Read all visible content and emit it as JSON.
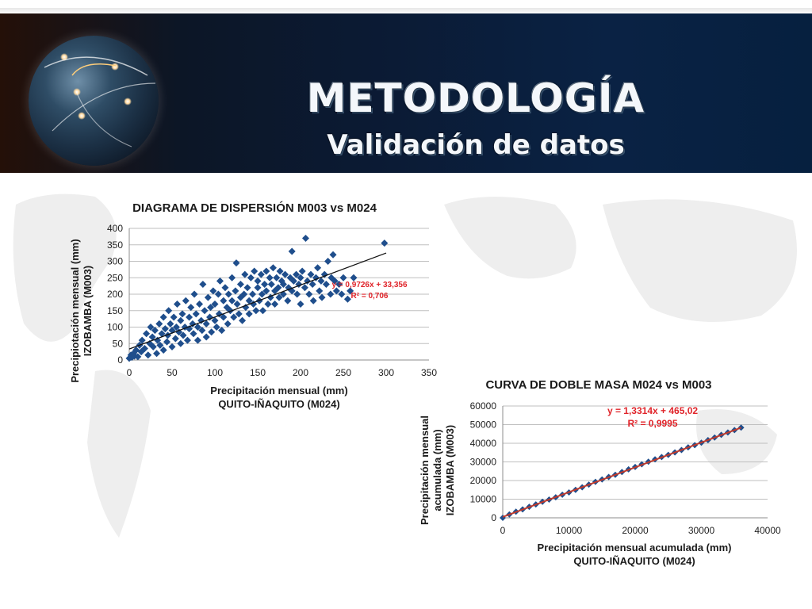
{
  "slide": {
    "title": "METODOLOGÍA",
    "subtitle": "Validación de datos"
  },
  "chart_data": [
    {
      "type": "scatter",
      "title": "DIAGRAMA DE DISPERSIÓN M003 vs M024",
      "xlabel": [
        "Precipitación mensual (mm)",
        "QUITO-IÑAQUITO (M024)"
      ],
      "ylabel": [
        "Precipiotación mensual (mm)",
        "IZOBAMBA (M003)"
      ],
      "xlim": [
        0,
        350
      ],
      "ylim": [
        0,
        400
      ],
      "xticks": [
        "0",
        "50",
        "100",
        "150",
        "200",
        "250",
        "300",
        "350"
      ],
      "yticks": [
        "0",
        "50",
        "100",
        "150",
        "200",
        "250",
        "300",
        "350",
        "400"
      ],
      "grid": "horizontal",
      "trendline": {
        "slope": 0.9726,
        "intercept": 33.356,
        "x_range": [
          0,
          300
        ]
      },
      "trend_label": [
        "y = 0,9726x + 33,356",
        "R² = 0,706"
      ],
      "marker_color": "#1f4e8c",
      "series": [
        {
          "points": [
            [
              0,
              5
            ],
            [
              2,
              15
            ],
            [
              3,
              8
            ],
            [
              5,
              20
            ],
            [
              6,
              12
            ],
            [
              8,
              30
            ],
            [
              10,
              10
            ],
            [
              12,
              45
            ],
            [
              14,
              25
            ],
            [
              15,
              60
            ],
            [
              18,
              35
            ],
            [
              20,
              80
            ],
            [
              22,
              15
            ],
            [
              24,
              50
            ],
            [
              25,
              100
            ],
            [
              27,
              70
            ],
            [
              28,
              40
            ],
            [
              30,
              90
            ],
            [
              32,
              20
            ],
            [
              33,
              60
            ],
            [
              35,
              110
            ],
            [
              36,
              45
            ],
            [
              38,
              80
            ],
            [
              40,
              30
            ],
            [
              40,
              130
            ],
            [
              42,
              95
            ],
            [
              44,
              55
            ],
            [
              45,
              75
            ],
            [
              46,
              150
            ],
            [
              48,
              110
            ],
            [
              50,
              40
            ],
            [
              50,
              90
            ],
            [
              52,
              130
            ],
            [
              54,
              65
            ],
            [
              55,
              100
            ],
            [
              56,
              170
            ],
            [
              58,
              85
            ],
            [
              60,
              50
            ],
            [
              60,
              120
            ],
            [
              62,
              140
            ],
            [
              63,
              75
            ],
            [
              65,
              100
            ],
            [
              66,
              180
            ],
            [
              68,
              60
            ],
            [
              70,
              130
            ],
            [
              70,
              95
            ],
            [
              72,
              160
            ],
            [
              74,
              110
            ],
            [
              75,
              80
            ],
            [
              76,
              200
            ],
            [
              78,
              140
            ],
            [
              80,
              100
            ],
            [
              80,
              60
            ],
            [
              82,
              170
            ],
            [
              84,
              120
            ],
            [
              85,
              90
            ],
            [
              86,
              230
            ],
            [
              88,
              150
            ],
            [
              90,
              110
            ],
            [
              90,
              70
            ],
            [
              92,
              190
            ],
            [
              94,
              130
            ],
            [
              95,
              160
            ],
            [
              96,
              85
            ],
            [
              98,
              210
            ],
            [
              100,
              120
            ],
            [
              100,
              170
            ],
            [
              102,
              100
            ],
            [
              104,
              200
            ],
            [
              105,
              140
            ],
            [
              106,
              240
            ],
            [
              108,
              90
            ],
            [
              110,
              180
            ],
            [
              110,
              130
            ],
            [
              112,
              220
            ],
            [
              114,
              160
            ],
            [
              115,
              110
            ],
            [
              116,
              200
            ],
            [
              118,
              150
            ],
            [
              120,
              250
            ],
            [
              120,
              180
            ],
            [
              122,
              130
            ],
            [
              124,
              210
            ],
            [
              125,
              295
            ],
            [
              126,
              170
            ],
            [
              128,
              140
            ],
            [
              130,
              230
            ],
            [
              130,
              190
            ],
            [
              132,
              120
            ],
            [
              134,
              200
            ],
            [
              135,
              260
            ],
            [
              136,
              160
            ],
            [
              138,
              220
            ],
            [
              140,
              180
            ],
            [
              140,
              140
            ],
            [
              142,
              250
            ],
            [
              144,
              200
            ],
            [
              145,
              170
            ],
            [
              146,
              270
            ],
            [
              148,
              150
            ],
            [
              150,
              220
            ],
            [
              150,
              240
            ],
            [
              152,
              180
            ],
            [
              154,
              260
            ],
            [
              155,
              200
            ],
            [
              156,
              150
            ],
            [
              158,
              230
            ],
            [
              160,
              270
            ],
            [
              160,
              210
            ],
            [
              162,
              170
            ],
            [
              164,
              250
            ],
            [
              165,
              190
            ],
            [
              166,
              230
            ],
            [
              168,
              280
            ],
            [
              170,
              210
            ],
            [
              170,
              170
            ],
            [
              172,
              250
            ],
            [
              174,
              220
            ],
            [
              175,
              190
            ],
            [
              176,
              270
            ],
            [
              178,
              240
            ],
            [
              180,
              200
            ],
            [
              180,
              230
            ],
            [
              182,
              260
            ],
            [
              185,
              180
            ],
            [
              186,
              220
            ],
            [
              188,
              250
            ],
            [
              190,
              330
            ],
            [
              190,
              210
            ],
            [
              192,
              240
            ],
            [
              195,
              260
            ],
            [
              196,
              200
            ],
            [
              198,
              230
            ],
            [
              200,
              170
            ],
            [
              200,
              250
            ],
            [
              202,
              270
            ],
            [
              205,
              220
            ],
            [
              206,
              370
            ],
            [
              208,
              240
            ],
            [
              210,
              200
            ],
            [
              212,
              260
            ],
            [
              214,
              230
            ],
            [
              215,
              180
            ],
            [
              218,
              250
            ],
            [
              220,
              280
            ],
            [
              222,
              210
            ],
            [
              224,
              240
            ],
            [
              225,
              190
            ],
            [
              228,
              260
            ],
            [
              230,
              230
            ],
            [
              232,
              300
            ],
            [
              235,
              200
            ],
            [
              236,
              250
            ],
            [
              238,
              320
            ],
            [
              240,
              240
            ],
            [
              242,
              210
            ],
            [
              245,
              230
            ],
            [
              248,
              200
            ],
            [
              250,
              250
            ],
            [
              255,
              185
            ],
            [
              258,
              210
            ],
            [
              262,
              250
            ],
            [
              298,
              355
            ]
          ]
        }
      ]
    },
    {
      "type": "scatter",
      "title": "CURVA DE DOBLE MASA M024 vs M003",
      "xlabel": [
        "Precipitación mensual acumulada (mm)",
        "QUITO-IÑAQUITO (M024)"
      ],
      "ylabel": [
        "Precipitación mensual",
        "acumulada (mm)",
        "IZOBAMBA (M003)"
      ],
      "xlim": [
        0,
        40000
      ],
      "ylim": [
        0,
        60000
      ],
      "xticks": [
        "0",
        "10000",
        "20000",
        "30000",
        "40000"
      ],
      "yticks": [
        "0",
        "10000",
        "20000",
        "30000",
        "40000",
        "50000",
        "60000"
      ],
      "grid": "horizontal",
      "trendline": {
        "slope": 1.3314,
        "intercept": 465.02,
        "x_range": [
          0,
          36000
        ]
      },
      "trend_label": [
        "y = 1,3314x + 465,02",
        "R² = 0,9995"
      ],
      "marker_color": "#1f4e8c",
      "line_color": "#c0392b",
      "series": [
        {
          "points": [
            [
              0,
              0
            ],
            [
              1000,
              1800
            ],
            [
              2000,
              3300
            ],
            [
              3000,
              4500
            ],
            [
              4000,
              5900
            ],
            [
              5000,
              7200
            ],
            [
              6000,
              8600
            ],
            [
              7000,
              9800
            ],
            [
              8000,
              11000
            ],
            [
              9000,
              12400
            ],
            [
              10000,
              13600
            ],
            [
              11000,
              15000
            ],
            [
              12000,
              16400
            ],
            [
              13000,
              17800
            ],
            [
              14000,
              19300
            ],
            [
              15000,
              20600
            ],
            [
              16000,
              21900
            ],
            [
              17000,
              23100
            ],
            [
              18000,
              24600
            ],
            [
              19000,
              26000
            ],
            [
              20000,
              27300
            ],
            [
              21000,
              28700
            ],
            [
              22000,
              30100
            ],
            [
              23000,
              31400
            ],
            [
              24000,
              32600
            ],
            [
              25000,
              33800
            ],
            [
              26000,
              35100
            ],
            [
              27000,
              36400
            ],
            [
              28000,
              37800
            ],
            [
              29000,
              39000
            ],
            [
              30000,
              40300
            ],
            [
              31000,
              41700
            ],
            [
              32000,
              43100
            ],
            [
              33000,
              44500
            ],
            [
              34000,
              45800
            ],
            [
              35000,
              47100
            ],
            [
              36000,
              48400
            ]
          ]
        }
      ]
    }
  ]
}
